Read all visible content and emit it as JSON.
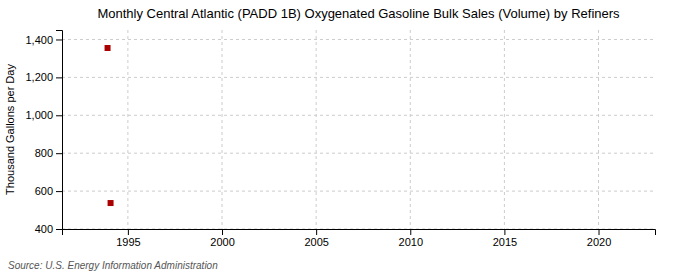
{
  "chart_data": {
    "type": "scatter",
    "title": "Monthly Central Atlantic (PADD 1B) Oxygenated Gasoline Bulk Sales (Volume) by Refiners",
    "y_label": "Thousand Gallons per Day",
    "annotations": [
      "Source: U.S. Energy Information Administration"
    ],
    "x": [
      1993.92,
      1994.08
    ],
    "values": [
      1355,
      537
    ],
    "color": "#aa0000",
    "marker": "square",
    "xlim": [
      1991.5,
      2023
    ],
    "ylim": [
      400,
      1450
    ],
    "xticks": [
      1995,
      2000,
      2005,
      2010,
      2015,
      2020
    ],
    "yticks": [
      400,
      600,
      800,
      {
        "value": 1000,
        "label": "1,000"
      },
      {
        "value": 1200,
        "label": "1,200"
      },
      {
        "value": 1400,
        "label": "1,400"
      }
    ],
    "grid": true
  }
}
